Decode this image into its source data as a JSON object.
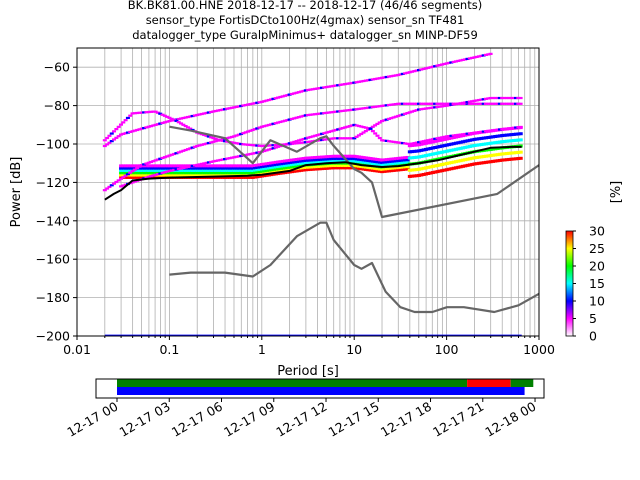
{
  "title_lines": [
    "BK.BK81.00.HNE   2018-12-17 -- 2018-12-17  (46/46 segments)",
    "sensor_type FortisDCto100Hz(4gmax) sensor_sn TF481",
    "datalogger_type GuralpMinimus+ datalogger_sn MINP-DF59"
  ],
  "chart_data": [
    {
      "type": "heatmap",
      "xlabel": "Period [s]",
      "ylabel": "Power [dB]",
      "xscale": "log",
      "xlim": [
        0.01,
        1000
      ],
      "ylim": [
        -200,
        -50
      ],
      "grid": true,
      "x_ticks": [
        0.01,
        0.1,
        1,
        10,
        100,
        1000
      ],
      "x_tick_labels": [
        "0.01",
        "0.1",
        "1",
        "10",
        "100",
        "1000"
      ],
      "y_ticks": [
        -200,
        -180,
        -160,
        -140,
        -120,
        -100,
        -80,
        -60
      ],
      "y_tick_labels": [
        "−200",
        "−180",
        "−160",
        "−140",
        "−120",
        "−100",
        "−80",
        "−60"
      ],
      "colorbar": {
        "label": "[%]",
        "min": 0,
        "max": 30,
        "ticks": [
          0,
          5,
          10,
          15,
          20,
          25,
          30
        ],
        "tick_labels": [
          "0",
          "5",
          "10",
          "15",
          "20",
          "25",
          "30"
        ],
        "colors": [
          "#ffffff",
          "#ff00ff",
          "#0000ff",
          "#00ffff",
          "#00ff00",
          "#ffff00",
          "#ff0000"
        ]
      },
      "series": [
        {
          "role": "noise-model-high",
          "color": "#666666",
          "points": [
            [
              0.1,
              -91
            ],
            [
              0.17,
              -93
            ],
            [
              0.4,
              -97
            ],
            [
              0.8,
              -110
            ],
            [
              1.24,
              -98
            ],
            [
              2.4,
              -104
            ],
            [
              4.3,
              -97
            ],
            [
              5,
              -96
            ],
            [
              6,
              -101
            ],
            [
              10,
              -113
            ],
            [
              12,
              -115
            ],
            [
              15.6,
              -120
            ],
            [
              20,
              -138
            ],
            [
              354,
              -126
            ],
            [
              1000,
              -111
            ]
          ]
        },
        {
          "role": "noise-model-low",
          "color": "#666666",
          "points": [
            [
              0.1,
              -168
            ],
            [
              0.17,
              -167
            ],
            [
              0.4,
              -167
            ],
            [
              0.8,
              -169
            ],
            [
              1.24,
              -163
            ],
            [
              2.4,
              -148
            ],
            [
              4.3,
              -141
            ],
            [
              5,
              -141
            ],
            [
              6,
              -150
            ],
            [
              10,
              -163
            ],
            [
              12,
              -165
            ],
            [
              15.6,
              -162
            ],
            [
              21.9,
              -177
            ],
            [
              31.6,
              -185
            ],
            [
              45,
              -187.5
            ],
            [
              70,
              -187.5
            ],
            [
              101,
              -185
            ],
            [
              154,
              -185
            ],
            [
              328,
              -187.5
            ],
            [
              600,
              -184
            ],
            [
              1000,
              -178
            ]
          ]
        },
        {
          "role": "mean-psd",
          "color": "#000000",
          "points": [
            [
              0.02,
              -129
            ],
            [
              0.025,
              -126
            ],
            [
              0.03,
              -124
            ],
            [
              0.04,
              -119
            ],
            [
              0.06,
              -118
            ],
            [
              0.1,
              -117.5
            ],
            [
              0.3,
              -117
            ],
            [
              0.7,
              -116.5
            ],
            [
              1,
              -116
            ],
            [
              2,
              -114
            ],
            [
              3,
              -111
            ],
            [
              5,
              -110
            ],
            [
              8,
              -109.5
            ],
            [
              12,
              -111
            ],
            [
              20,
              -112
            ],
            [
              30,
              -111.5
            ],
            [
              50,
              -110
            ],
            [
              80,
              -108.5
            ],
            [
              120,
              -106.5
            ],
            [
              200,
              -104
            ],
            [
              300,
              -102
            ],
            [
              500,
              -101.5
            ],
            [
              650,
              -101.5
            ]
          ]
        }
      ],
      "density_bands": [
        {
          "level": "high",
          "points": [
            [
              0.03,
              -115
            ],
            [
              0.1,
              -115
            ],
            [
              0.3,
              -115
            ],
            [
              0.8,
              -115
            ],
            [
              1.5,
              -113
            ],
            [
              3,
              -111
            ],
            [
              6,
              -110
            ],
            [
              10,
              -110
            ],
            [
              20,
              -112
            ],
            [
              50,
              -110
            ],
            [
              100,
              -107
            ],
            [
              200,
              -104
            ],
            [
              400,
              -102
            ],
            [
              650,
              -101
            ]
          ]
        },
        {
          "level": "low",
          "points": [
            [
              0.02,
              -101
            ],
            [
              0.03,
              -95
            ],
            [
              0.05,
              -92
            ],
            [
              0.1,
              -88
            ],
            [
              0.3,
              -83
            ],
            [
              1,
              -78
            ],
            [
              3,
              -72
            ],
            [
              10,
              -68
            ],
            [
              30,
              -64
            ],
            [
              100,
              -58
            ],
            [
              300,
              -53
            ]
          ]
        },
        {
          "level": "low",
          "points": [
            [
              0.02,
              -124
            ],
            [
              0.03,
              -118
            ],
            [
              0.05,
              -111
            ],
            [
              0.1,
              -106
            ],
            [
              0.2,
              -101
            ],
            [
              0.5,
              -96
            ],
            [
              1,
              -91
            ],
            [
              3,
              -85
            ],
            [
              10,
              -82
            ],
            [
              30,
              -79
            ],
            [
              100,
              -79
            ],
            [
              300,
              -79
            ],
            [
              650,
              -79
            ]
          ]
        },
        {
          "level": "low",
          "points": [
            [
              0.02,
              -98
            ],
            [
              0.04,
              -84
            ],
            [
              0.07,
              -83
            ],
            [
              0.12,
              -88
            ],
            [
              0.2,
              -94
            ],
            [
              0.35,
              -98
            ],
            [
              0.6,
              -100
            ],
            [
              1,
              -101
            ],
            [
              2,
              -100
            ],
            [
              3,
              -99
            ],
            [
              6,
              -97
            ],
            [
              10,
              -97
            ],
            [
              20,
              -88
            ],
            [
              50,
              -82
            ],
            [
              100,
              -80
            ],
            [
              300,
              -76
            ],
            [
              650,
              -76
            ]
          ]
        },
        {
          "level": "low",
          "points": [
            [
              0.03,
              -122
            ],
            [
              0.06,
              -117
            ],
            [
              0.1,
              -114
            ],
            [
              0.3,
              -109
            ],
            [
              1,
              -104
            ],
            [
              3,
              -97
            ],
            [
              10,
              -90
            ],
            [
              15,
              -92
            ],
            [
              20,
              -98
            ],
            [
              40,
              -100
            ],
            [
              100,
              -96
            ],
            [
              300,
              -93
            ],
            [
              650,
              -91
            ]
          ]
        }
      ]
    },
    {
      "type": "timeline",
      "x_tick_labels": [
        "12-17 00",
        "12-17 03",
        "12-17 06",
        "12-17 09",
        "12-17 12",
        "12-17 15",
        "12-17 18",
        "12-17 21",
        "12-18 00"
      ],
      "rows": [
        {
          "row": "top",
          "segments": [
            {
              "color": "#008000",
              "start_hour": 0,
              "end_hour": 20.1
            },
            {
              "color": "#ff0000",
              "start_hour": 20.1,
              "end_hour": 22.6
            },
            {
              "color": "#008000",
              "start_hour": 22.6,
              "end_hour": 23.9
            }
          ]
        },
        {
          "row": "bottom",
          "segments": [
            {
              "color": "#0000ff",
              "start_hour": 0,
              "end_hour": 23.4
            }
          ]
        }
      ]
    }
  ]
}
